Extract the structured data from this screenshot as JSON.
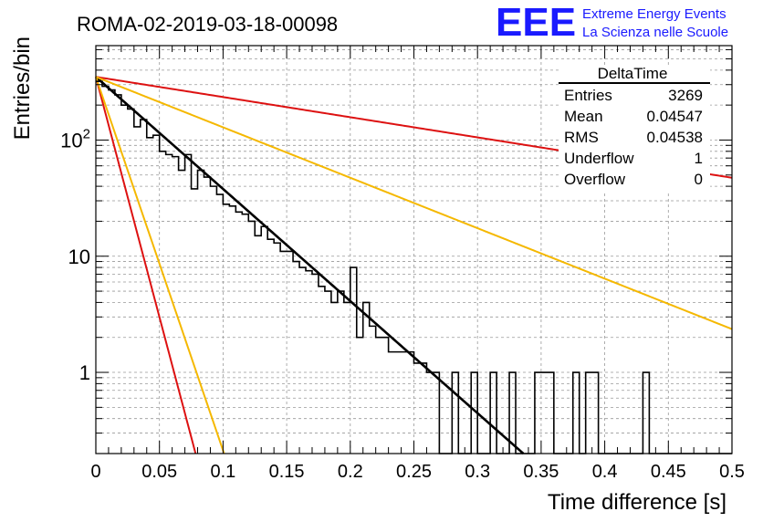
{
  "chart_data": {
    "type": "histogram",
    "title": "ROMA-02-2019-03-18-00098",
    "xlabel": "Time difference [s]",
    "ylabel": "Entries/bin",
    "xlim": [
      0,
      0.5
    ],
    "ylim": [
      0.2,
      650
    ],
    "yscale": "log",
    "grid": true,
    "x_ticks": [
      {
        "v": 0,
        "label": "0"
      },
      {
        "v": 0.05,
        "label": "0.05"
      },
      {
        "v": 0.1,
        "label": "0.1"
      },
      {
        "v": 0.15,
        "label": "0.15"
      },
      {
        "v": 0.2,
        "label": "0.2"
      },
      {
        "v": 0.25,
        "label": "0.25"
      },
      {
        "v": 0.3,
        "label": "0.3"
      },
      {
        "v": 0.35,
        "label": "0.35"
      },
      {
        "v": 0.4,
        "label": "0.4"
      },
      {
        "v": 0.45,
        "label": "0.45"
      },
      {
        "v": 0.5,
        "label": "0.5"
      }
    ],
    "y_ticks": [
      {
        "v": 1,
        "label": "1",
        "sup": ""
      },
      {
        "v": 10,
        "label": "10",
        "sup": ""
      },
      {
        "v": 100,
        "label": "10",
        "sup": "2"
      }
    ],
    "bin_width": 0.005,
    "histogram_counts": [
      320,
      290,
      270,
      245,
      200,
      185,
      130,
      150,
      105,
      110,
      80,
      75,
      72,
      55,
      75,
      38,
      55,
      48,
      40,
      34,
      28,
      27,
      24,
      23,
      20,
      15,
      18,
      14,
      13,
      11,
      11,
      9,
      8,
      7.5,
      7,
      5.5,
      5,
      4,
      5,
      4,
      8,
      2,
      4,
      2.5,
      2,
      2,
      1.5,
      1.5,
      1.5,
      1.5,
      1.2,
      1.2,
      1,
      1,
      0,
      0,
      1,
      0,
      0,
      1,
      0,
      0,
      1,
      0,
      0,
      1,
      0,
      0,
      0,
      1,
      1,
      1,
      0,
      0,
      0,
      1,
      0,
      1,
      1,
      0,
      0,
      0,
      0,
      0,
      0,
      0,
      1,
      0,
      0,
      0,
      0,
      0,
      0,
      0,
      0,
      0,
      0,
      0,
      0,
      0
    ],
    "fit_curves": [
      {
        "name": "exponential fit",
        "color": "#000000",
        "a": 350,
        "tau": 0.045
      },
      {
        "name": "reference red (slow)",
        "color": "#dd1111",
        "a": 350,
        "tau": 0.25
      },
      {
        "name": "reference orange (slow)",
        "color": "#f5b800",
        "a": 350,
        "tau": 0.1
      },
      {
        "name": "reference red (fast)",
        "color": "#dd1111",
        "a": 350,
        "tau": 0.0105
      },
      {
        "name": "reference orange (fast)",
        "color": "#f5b800",
        "a": 350,
        "tau": 0.0135
      }
    ],
    "stats_box": {
      "title": "DeltaTime",
      "rows": [
        {
          "label": "Entries",
          "value": "3269"
        },
        {
          "label": "Mean",
          "value": "0.04547"
        },
        {
          "label": "RMS",
          "value": "0.04538"
        },
        {
          "label": "Underflow",
          "value": "1"
        },
        {
          "label": "Overflow",
          "value": "0"
        }
      ]
    },
    "logo": {
      "text": "EEE",
      "line1": "Extreme Energy Events",
      "line2": "La Scienza nelle Scuole",
      "color": "#1a1aff"
    }
  }
}
